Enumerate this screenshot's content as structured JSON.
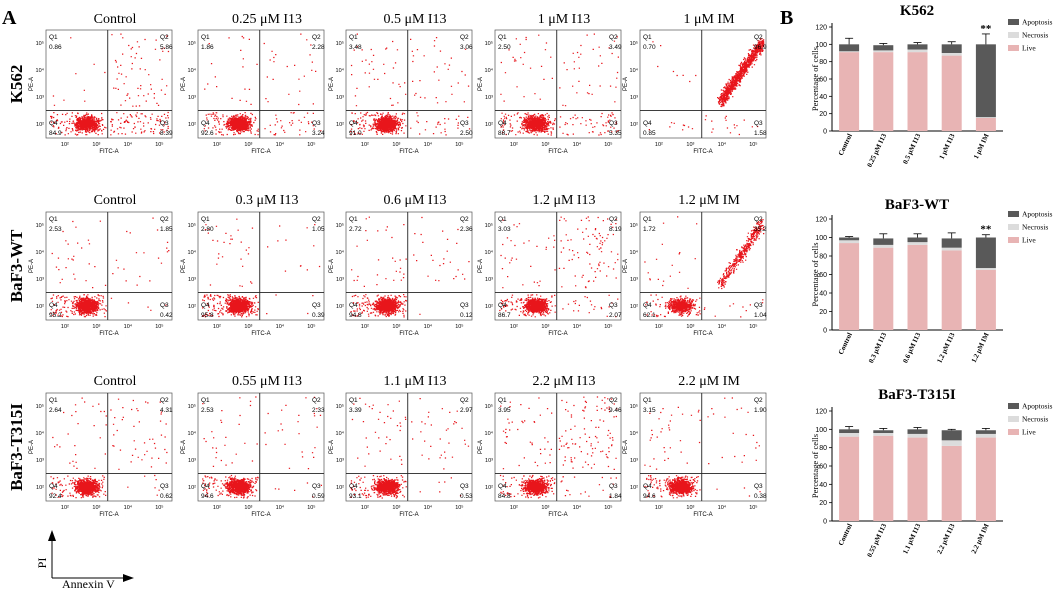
{
  "panel_labels": {
    "a": "A",
    "b": "B"
  },
  "axis_legend": {
    "y": "PI",
    "x": "Annexin V"
  },
  "flow_axes": {
    "x": "FITC-A",
    "y": "PE-A",
    "ticks": [
      "10²",
      "10³",
      "10⁴",
      "10⁵"
    ]
  },
  "quadrant_names": [
    "Q1",
    "Q2",
    "Q3",
    "Q4"
  ],
  "colors": {
    "dots": "#e8151b",
    "apoptosis": "#595959",
    "necrosis": "#dcdcdc",
    "live": "#e8b4b4",
    "text": "#000000"
  },
  "flow_rows": [
    {
      "cell_line": "K562",
      "plots": [
        {
          "title": "Control",
          "q1": "0.86",
          "q2": "5.86",
          "q3": "8.39",
          "q4": "84.9"
        },
        {
          "title": "0.25 μM I13",
          "q1": "1.86",
          "q2": "2.28",
          "q3": "3.24",
          "q4": "92.6"
        },
        {
          "title": "0.5 μM I13",
          "q1": "3.48",
          "q2": "3.06",
          "q3": "2.50",
          "q4": "91.0"
        },
        {
          "title": "1 μM I13",
          "q1": "2.50",
          "q2": "3.49",
          "q3": "5.35",
          "q4": "88.7"
        },
        {
          "title": "1 μM IM",
          "q1": "0.70",
          "q2": "96.9",
          "q3": "1.58",
          "q4": "0.85"
        }
      ]
    },
    {
      "cell_line": "BaF3-WT",
      "plots": [
        {
          "title": "Control",
          "q1": "2.53",
          "q2": "1.85",
          "q3": "0.42",
          "q4": "95.2"
        },
        {
          "title": "0.3 μM I13",
          "q1": "2.80",
          "q2": "1.05",
          "q3": "0.39",
          "q4": "95.8"
        },
        {
          "title": "0.6 μM I13",
          "q1": "2.72",
          "q2": "2.36",
          "q3": "0.12",
          "q4": "94.8"
        },
        {
          "title": "1.2 μM I13",
          "q1": "3.03",
          "q2": "8.19",
          "q3": "2.07",
          "q4": "86.7"
        },
        {
          "title": "1.2 μM IM",
          "q1": "1.72",
          "q2": "35.2",
          "q3": "1.04",
          "q4": "62.1"
        }
      ]
    },
    {
      "cell_line": "BaF3-T315I",
      "plots": [
        {
          "title": "Control",
          "q1": "2.64",
          "q2": "4.31",
          "q3": "0.62",
          "q4": "92.4"
        },
        {
          "title": "0.55 μM I13",
          "q1": "2.53",
          "q2": "2.33",
          "q3": "0.59",
          "q4": "94.6"
        },
        {
          "title": "1.1 μM I13",
          "q1": "3.39",
          "q2": "2.97",
          "q3": "0.53",
          "q4": "93.1"
        },
        {
          "title": "2.2 μM I13",
          "q1": "3.95",
          "q2": "9.46",
          "q3": "1.84",
          "q4": "84.8"
        },
        {
          "title": "2.2 μM IM",
          "q1": "3.15",
          "q2": "1.90",
          "q3": "0.38",
          "q4": "94.6"
        }
      ]
    }
  ],
  "chart_data": [
    {
      "type": "bar",
      "stacked": true,
      "title": "K562",
      "categories": [
        "Control",
        "0.25 μM I13",
        "0.5 μM I13",
        "1 μM I13",
        "1 μM IM"
      ],
      "series": [
        {
          "name": "Live",
          "values": [
            91,
            91,
            91,
            87,
            15
          ]
        },
        {
          "name": "Necrosis",
          "values": [
            1,
            2,
            3,
            3,
            1
          ]
        },
        {
          "name": "Apoptosis",
          "values": [
            8,
            6,
            6,
            10,
            84
          ]
        }
      ],
      "error": [
        7,
        2,
        2,
        3,
        12
      ],
      "significance": [
        "",
        "",
        "",
        "",
        "**"
      ],
      "ylabel": "Percentage of cells",
      "yticks": [
        0,
        20,
        40,
        60,
        80,
        100,
        120
      ],
      "ylim": [
        0,
        120
      ],
      "legend": [
        "Apoptosis",
        "Necrosis",
        "Live"
      ]
    },
    {
      "type": "bar",
      "stacked": true,
      "title": "BaF3-WT",
      "categories": [
        "Control",
        "0.3 μM I13",
        "0.6 μM I13",
        "1.2 μM I13",
        "1.2 μM IM"
      ],
      "series": [
        {
          "name": "Live",
          "values": [
            94,
            89,
            92,
            86,
            65
          ]
        },
        {
          "name": "Necrosis",
          "values": [
            3,
            3,
            3,
            3,
            2
          ]
        },
        {
          "name": "Apoptosis",
          "values": [
            3,
            7,
            5,
            10,
            33
          ]
        }
      ],
      "error": [
        1,
        5,
        4,
        6,
        3
      ],
      "significance": [
        "",
        "",
        "",
        "",
        "**"
      ],
      "ylabel": "Percentage of cells",
      "yticks": [
        0,
        20,
        40,
        60,
        80,
        100,
        120
      ],
      "ylim": [
        0,
        120
      ],
      "legend": [
        "Apoptosis",
        "Necrosis",
        "Live"
      ]
    },
    {
      "type": "bar",
      "stacked": true,
      "title": "BaF3-T315I",
      "categories": [
        "Control",
        "0.55 μM I13",
        "1.1 μM I13",
        "2.2 μM I13",
        "2.2 μM IM"
      ],
      "series": [
        {
          "name": "Live",
          "values": [
            92,
            93,
            91,
            82,
            91
          ]
        },
        {
          "name": "Necrosis",
          "values": [
            4,
            3,
            4,
            6,
            4
          ]
        },
        {
          "name": "Apoptosis",
          "values": [
            4,
            3,
            5,
            11,
            4
          ]
        }
      ],
      "error": [
        3,
        2,
        2,
        1,
        2
      ],
      "significance": [
        "",
        "",
        "",
        "",
        ""
      ],
      "ylabel": "Percentage of cells",
      "yticks": [
        0,
        20,
        40,
        60,
        80,
        100,
        120
      ],
      "ylim": [
        0,
        120
      ],
      "legend": [
        "Apoptosis",
        "Necrosis",
        "Live"
      ]
    }
  ]
}
